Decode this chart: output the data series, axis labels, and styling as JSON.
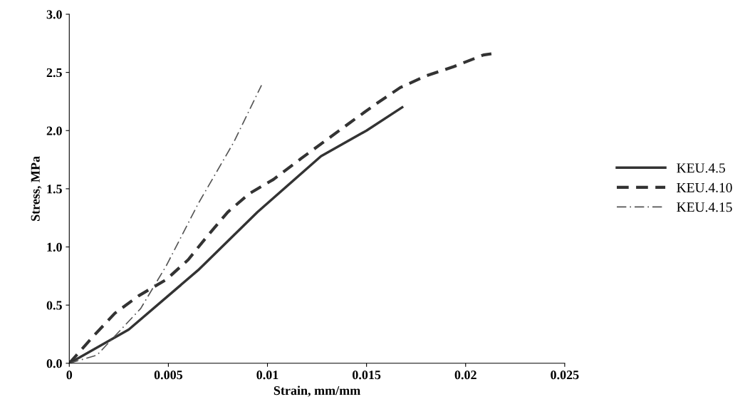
{
  "chart_data": {
    "type": "line",
    "xlabel": "Strain, mm/mm",
    "ylabel": "Stress, MPa",
    "xlim": [
      0,
      0.025
    ],
    "ylim": [
      0,
      3.0
    ],
    "xticks": [
      0,
      0.005,
      0.01,
      0.015,
      0.02,
      0.025
    ],
    "yticks": [
      {
        "value": 0,
        "label": "0.0"
      },
      0.5,
      {
        "value": 1,
        "label": "1.0"
      },
      1.5,
      {
        "value": 2,
        "label": "2.0"
      },
      2.5,
      {
        "value": 3,
        "label": "3.0"
      }
    ],
    "grid": false,
    "legend": "right",
    "series": [
      {
        "name": "KEU.4.5",
        "color": "#333333",
        "line_style": "solid",
        "x": [
          0,
          0.003,
          0.0065,
          0.0095,
          0.0127,
          0.015,
          0.0168
        ],
        "values": [
          0,
          0.29,
          0.8,
          1.3,
          1.78,
          2.0,
          2.2
        ]
      },
      {
        "name": "KEU.4.10",
        "color": "#333333",
        "line_style": "dashed",
        "x": [
          0,
          0.0012,
          0.0023,
          0.0035,
          0.0049,
          0.006,
          0.007,
          0.008,
          0.0091,
          0.0103,
          0.0117,
          0.0141,
          0.0154,
          0.0167,
          0.018,
          0.0194,
          0.0209,
          0.0213
        ],
        "values": [
          0,
          0.23,
          0.43,
          0.58,
          0.72,
          0.89,
          1.1,
          1.3,
          1.46,
          1.58,
          1.76,
          2.06,
          2.22,
          2.37,
          2.47,
          2.55,
          2.65,
          2.66
        ]
      },
      {
        "name": "KEU.4.15",
        "color": "#555555",
        "line_style": "dashdot",
        "x": [
          0,
          0.0014,
          0.0036,
          0.0049,
          0.0065,
          0.0083,
          0.0097
        ],
        "values": [
          0,
          0.07,
          0.47,
          0.84,
          1.37,
          1.9,
          2.39
        ]
      }
    ]
  }
}
